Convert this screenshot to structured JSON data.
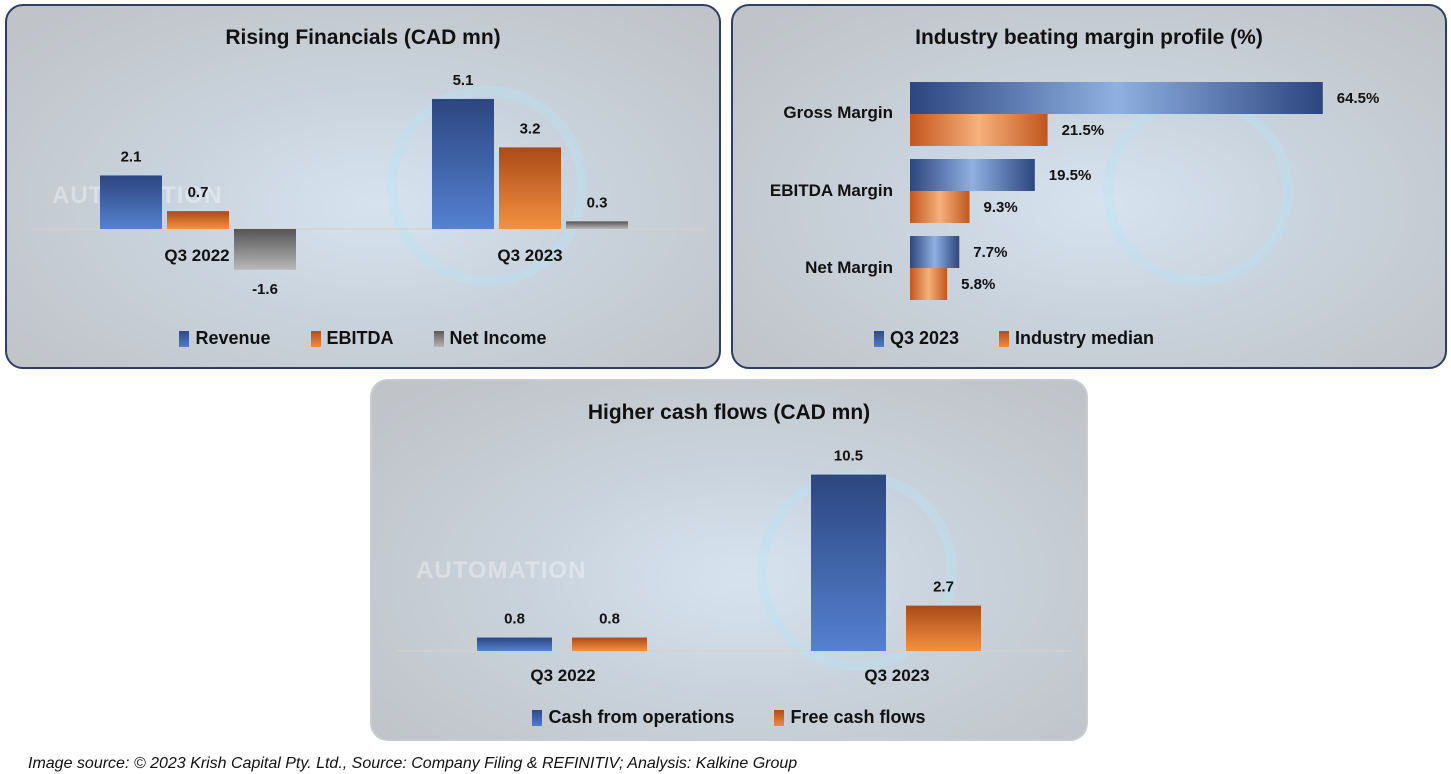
{
  "colors": {
    "revenue": "#4472c4",
    "ebitda": "#ed7d31",
    "net_income": "#a5a5a5",
    "q3_2023": "#4472c4",
    "industry_median": "#ed7d31",
    "panel_border": "#2d3d66"
  },
  "watermark": {
    "text": "AUTOMATION"
  },
  "chart_data": [
    {
      "type": "bar",
      "title": "Rising Financials (CAD mn)",
      "categories": [
        "Q3 2022",
        "Q3 2023"
      ],
      "series": [
        {
          "name": "Revenue",
          "values": [
            2.1,
            5.1
          ],
          "labels": [
            "2.1",
            "5.1"
          ]
        },
        {
          "name": "EBITDA",
          "values": [
            0.7,
            3.2
          ],
          "labels": [
            "0.7",
            "3.2"
          ]
        },
        {
          "name": "Net Income",
          "values": [
            -1.6,
            0.3
          ],
          "labels": [
            "-1.6",
            "0.3"
          ]
        }
      ],
      "legend": "bottom",
      "grid": false
    },
    {
      "type": "bar",
      "orientation": "horizontal",
      "title": "Industry beating margin profile (%)",
      "categories": [
        "Gross Margin",
        "EBITDA Margin",
        "Net Margin"
      ],
      "series": [
        {
          "name": "Q3 2023",
          "values": [
            64.5,
            19.5,
            7.7
          ],
          "labels": [
            "64.5%",
            "19.5%",
            "7.7%"
          ]
        },
        {
          "name": "Industry median",
          "values": [
            21.5,
            9.3,
            5.8
          ],
          "labels": [
            "21.5%",
            "9.3%",
            "5.8%"
          ]
        }
      ],
      "legend": "bottom",
      "grid": false
    },
    {
      "type": "bar",
      "title": "Higher cash flows (CAD mn)",
      "categories": [
        "Q3 2022",
        "Q3 2023"
      ],
      "series": [
        {
          "name": "Cash from operations",
          "values": [
            0.8,
            10.5
          ],
          "labels": [
            "0.8",
            "10.5"
          ]
        },
        {
          "name": "Free cash flows",
          "values": [
            0.8,
            2.7
          ],
          "labels": [
            "0.8",
            "2.7"
          ]
        }
      ],
      "legend": "bottom",
      "grid": false
    }
  ],
  "footer": "Image source: © 2023 Krish Capital Pty. Ltd., Source: Company Filing & REFINITIV; Analysis: Kalkine Group"
}
